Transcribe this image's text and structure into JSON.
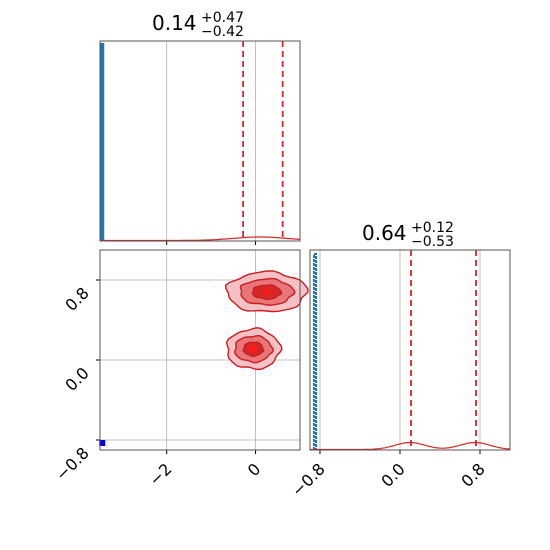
{
  "colors": {
    "reference": "#1f77b4",
    "posterior": "#d62728",
    "truth_marker": "#0000ff",
    "grid": "#b0b0b0"
  },
  "chart_data": {
    "type": "corner",
    "parameters": 2,
    "grid": true,
    "panels": [
      {
        "panel": "marginal-param-1",
        "type": "histogram",
        "title": {
          "median": "0.14",
          "plus": "+0.47",
          "minus": "−0.42"
        },
        "xlim": [
          -3.5,
          1.0
        ],
        "x_ticks": [
          {
            "value": -2,
            "label": "−2"
          },
          {
            "value": 0,
            "label": "0"
          }
        ],
        "quantile_lines": [
          -0.28,
          0.61
        ],
        "reference_spike_at": -3.45,
        "posterior_bump": {
          "center": 0.1,
          "width": 0.6
        }
      },
      {
        "panel": "marginal-param-2",
        "type": "histogram",
        "title": {
          "median": "0.64",
          "plus": "+0.12",
          "minus": "−0.53"
        },
        "xlim": [
          -0.9,
          1.1
        ],
        "x_ticks": [
          {
            "value": -0.8,
            "label": "−0.8"
          },
          {
            "value": 0.0,
            "label": "0.0"
          },
          {
            "value": 0.8,
            "label": "0.8"
          }
        ],
        "quantile_lines": [
          0.11,
          0.76
        ],
        "reference_spike_at": -0.85,
        "posterior_bumps": [
          {
            "center": 0.1,
            "width": 0.15
          },
          {
            "center": 0.75,
            "width": 0.15
          }
        ]
      },
      {
        "panel": "joint-param-1-param-2",
        "type": "contour",
        "xlim": [
          -3.5,
          1.0
        ],
        "ylim": [
          -0.9,
          1.1
        ],
        "x_ticks": [
          {
            "value": -2,
            "label": "−2"
          },
          {
            "value": 0,
            "label": "0"
          }
        ],
        "y_ticks": [
          {
            "value": -0.8,
            "label": "−0.8"
          },
          {
            "value": 0.0,
            "label": "0.0"
          },
          {
            "value": 0.8,
            "label": "0.8"
          }
        ],
        "modes": [
          {
            "x": 0.25,
            "y": 0.68,
            "levels": [
              {
                "rx": 0.9,
                "ry": 0.2
              },
              {
                "rx": 0.6,
                "ry": 0.13
              },
              {
                "rx": 0.32,
                "ry": 0.07
              }
            ]
          },
          {
            "x": -0.05,
            "y": 0.11,
            "levels": [
              {
                "rx": 0.6,
                "ry": 0.2
              },
              {
                "rx": 0.42,
                "ry": 0.13
              },
              {
                "rx": 0.22,
                "ry": 0.07
              }
            ]
          }
        ],
        "truth_marker": {
          "x": -3.45,
          "y": -0.83
        }
      }
    ]
  }
}
